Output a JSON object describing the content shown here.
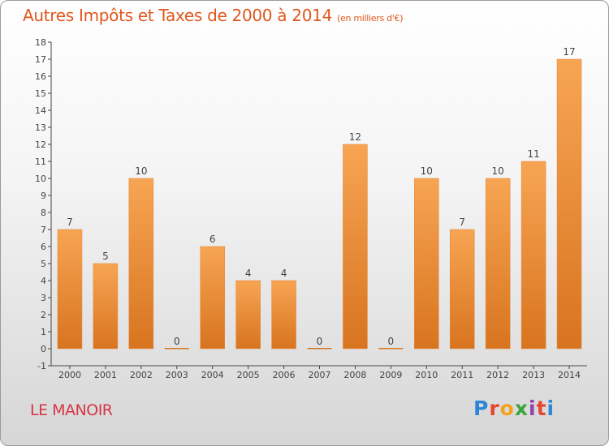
{
  "header": {
    "title": "Autres Impôts et Taxes de 2000 à 2014",
    "subtitle": "(en milliers d'€)"
  },
  "footer": {
    "commune": "LE MANOIR",
    "logo_text": "Proxiti"
  },
  "colors": {
    "title": "#e0571c",
    "commune": "#d63545",
    "bar_top": "#f7a553",
    "bar_bottom": "#d8741f"
  },
  "chart_data": {
    "type": "bar",
    "title": "Autres Impôts et Taxes de 2000 à 2014",
    "subtitle": "(en milliers d'€)",
    "xlabel": "",
    "ylabel": "",
    "categories": [
      "2000",
      "2001",
      "2002",
      "2003",
      "2004",
      "2005",
      "2006",
      "2007",
      "2008",
      "2009",
      "2010",
      "2011",
      "2012",
      "2013",
      "2014"
    ],
    "values": [
      7,
      5,
      10,
      0,
      6,
      4,
      4,
      0,
      12,
      0,
      10,
      7,
      10,
      11,
      17
    ],
    "ylim": [
      -1,
      18
    ],
    "yticks": [
      -1,
      0,
      1,
      2,
      3,
      4,
      5,
      6,
      7,
      8,
      9,
      10,
      11,
      12,
      13,
      14,
      15,
      16,
      17,
      18
    ],
    "grid": false,
    "legend": "none"
  }
}
